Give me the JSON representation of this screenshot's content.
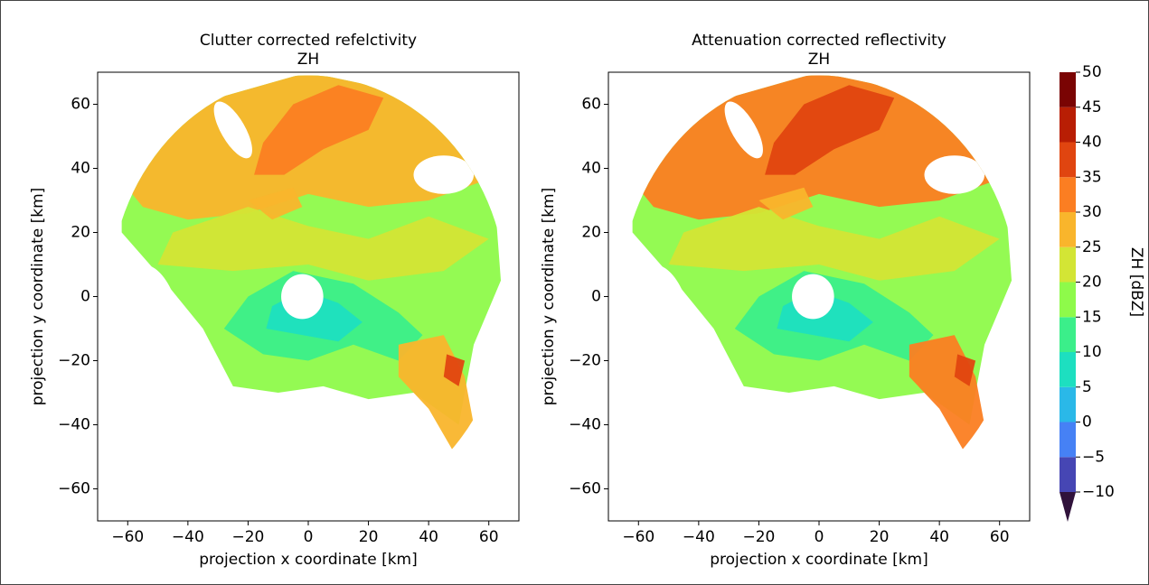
{
  "chart_data": [
    {
      "type": "radar-ppi",
      "title": "Clutter corrected refelctivity",
      "subtitle": "ZH",
      "x_label": "projection x coordinate [km]",
      "y_label": "projection y coordinate [km]",
      "xlim": [
        -70,
        70
      ],
      "ylim": [
        -70,
        70
      ],
      "xticks": [
        {
          "value": -60,
          "label": "−60"
        },
        {
          "value": -40,
          "label": "−40"
        },
        {
          "value": -20,
          "label": "−20"
        },
        0,
        20,
        40,
        60
      ],
      "yticks": [
        {
          "value": -60,
          "label": "−60"
        },
        {
          "value": -40,
          "label": "−40"
        },
        {
          "value": -20,
          "label": "−20"
        },
        0,
        20,
        40,
        60
      ]
    },
    {
      "type": "radar-ppi",
      "title": "Attenuation corrected reflectivity",
      "subtitle": "ZH",
      "x_label": "projection x coordinate [km]",
      "y_label": "projection y coordinate [km]",
      "xlim": [
        -70,
        70
      ],
      "ylim": [
        -70,
        70
      ],
      "xticks": [
        {
          "value": -60,
          "label": "−60"
        },
        {
          "value": -40,
          "label": "−40"
        },
        {
          "value": -20,
          "label": "−20"
        },
        0,
        20,
        40,
        60
      ],
      "yticks": [
        {
          "value": -60,
          "label": "−60"
        },
        {
          "value": -40,
          "label": "−40"
        },
        {
          "value": -20,
          "label": "−20"
        },
        0,
        20,
        40,
        60
      ]
    }
  ],
  "colorbar": {
    "label": "ZH [dBZ]",
    "levels": [
      {
        "value": -10,
        "label": "−10"
      },
      {
        "value": -5,
        "label": "−5"
      },
      0,
      5,
      10,
      15,
      20,
      25,
      30,
      35,
      40,
      45,
      50
    ],
    "colors": [
      "#4646b4",
      "#4681f5",
      "#2ab8e8",
      "#1ddfc0",
      "#3bef8a",
      "#8efa4a",
      "#d3e535",
      "#f9b52c",
      "#fb7e22",
      "#e04510",
      "#b81e04",
      "#7a0403"
    ],
    "extend": "min",
    "extend_color": "#30123b"
  }
}
